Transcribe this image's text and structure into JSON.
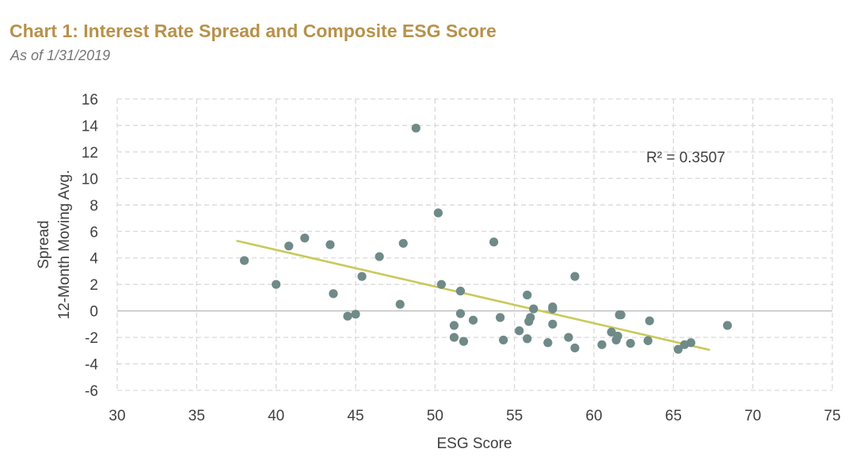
{
  "header": {
    "title": "Chart 1: Interest Rate Spread and Composite ESG Score",
    "subtitle": "As of 1/31/2019"
  },
  "colors": {
    "title": "#b8914a",
    "points": "#6f8a88",
    "trendline": "#c9c95a",
    "grid": "#d9d9d9",
    "zero_line": "#bfbfbf",
    "text": "#404040"
  },
  "chart_data": {
    "type": "scatter",
    "title": "Chart 1: Interest Rate Spread and Composite ESG Score",
    "subtitle": "As of 1/31/2019",
    "xlabel": "ESG Score",
    "ylabel_lines": [
      "Spread",
      "12-Month Moving Avg."
    ],
    "xlim": [
      30,
      75
    ],
    "ylim": [
      -6,
      16
    ],
    "xticks": [
      30,
      35,
      40,
      45,
      50,
      55,
      60,
      65,
      70,
      75
    ],
    "yticks": [
      -6,
      -4,
      -2,
      0,
      2,
      4,
      6,
      8,
      10,
      12,
      14,
      16
    ],
    "grid": true,
    "grid_style": "dashed",
    "series": [
      {
        "x": [
          38.0,
          40.0,
          40.8,
          41.8,
          43.4,
          43.6,
          44.5,
          45.0,
          45.4,
          46.5,
          47.8,
          48.0,
          48.8,
          50.2,
          50.4,
          51.2,
          51.2,
          51.6,
          51.6,
          51.8,
          52.4,
          53.7,
          54.1,
          54.3,
          55.3,
          55.8,
          55.8,
          55.9,
          56.0,
          56.2,
          57.1,
          57.4,
          57.4,
          57.4,
          58.4,
          58.8,
          58.8,
          60.5,
          61.1,
          61.4,
          61.5,
          61.6,
          61.7,
          62.3,
          63.4,
          63.5,
          65.3,
          65.7,
          66.1,
          68.4
        ],
        "y": [
          3.8,
          2.0,
          4.9,
          5.5,
          5.0,
          1.3,
          -0.4,
          -0.25,
          2.6,
          4.1,
          0.5,
          5.1,
          13.8,
          7.4,
          2.0,
          -1.1,
          -2.0,
          1.5,
          -0.2,
          -2.3,
          -0.7,
          5.2,
          -0.5,
          -2.2,
          -1.5,
          1.2,
          -2.1,
          -0.8,
          -0.5,
          0.15,
          -2.4,
          0.3,
          0.15,
          -1.0,
          -2.0,
          2.6,
          -2.8,
          -2.55,
          -1.6,
          -2.2,
          -1.9,
          -0.3,
          -0.3,
          -2.45,
          -2.25,
          -0.75,
          -2.9,
          -2.55,
          -2.4,
          -1.1
        ]
      }
    ],
    "trendline": {
      "type": "linear",
      "x": [
        37.5,
        67.3
      ],
      "y": [
        5.3,
        -2.95
      ],
      "label": "R² = 0.3507"
    }
  }
}
